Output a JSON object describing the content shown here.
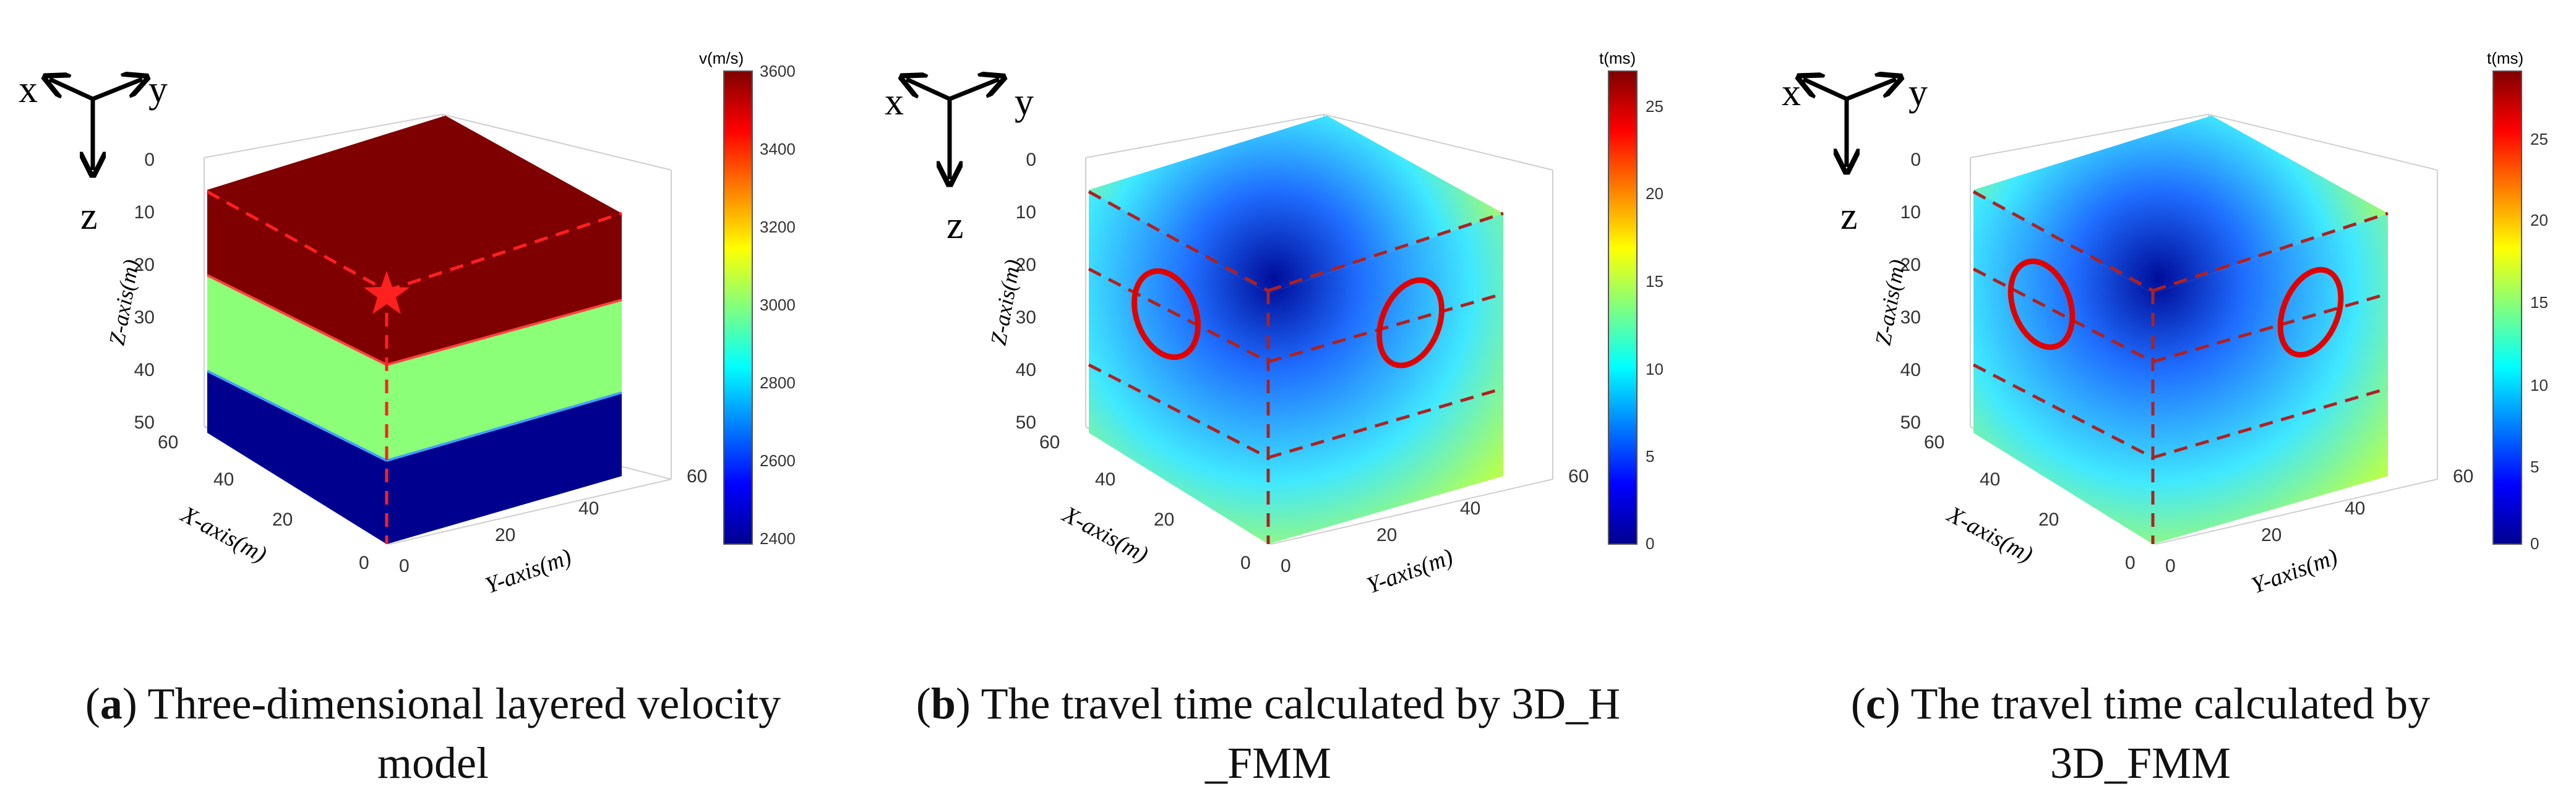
{
  "chart_data": [
    {
      "type": "3d-volume",
      "panel_letter": "a",
      "caption": "Three-dimensional layered velocity model",
      "axes_triad": {
        "x": "x",
        "y": "y",
        "z": "z"
      },
      "xlabel": "X-axis(m)",
      "ylabel": "Y-axis(m)",
      "zlabel": "Z-axis(m)",
      "x_ticks": [
        0,
        20,
        40,
        60
      ],
      "y_ticks": [
        0,
        20,
        40,
        60
      ],
      "z_ticks": [
        0,
        10,
        20,
        30,
        40,
        50
      ],
      "xlim": [
        0,
        60
      ],
      "ylim": [
        0,
        60
      ],
      "zlim": [
        0,
        50
      ],
      "colorbar": {
        "title": "v(m/s)",
        "min": 2400,
        "max": 3600,
        "ticks": [
          2400,
          2600,
          2800,
          3000,
          3200,
          3400,
          3600
        ]
      },
      "layers": [
        {
          "z_top": 0,
          "z_bottom": 20,
          "value": 3600,
          "color": "#7f0000"
        },
        {
          "z_top": 20,
          "z_bottom": 36,
          "value": 3050,
          "color": "#8cff78"
        },
        {
          "z_top": 36,
          "z_bottom": 50,
          "value": 2400,
          "color": "#00008f"
        }
      ],
      "source_marker": "star",
      "source_color": "#ff2020"
    },
    {
      "type": "3d-volume",
      "panel_letter": "b",
      "caption": "The travel time calculated by 3D_H _FMM",
      "caption_lines": [
        "The travel time calculated by 3D_H",
        "_FMM"
      ],
      "axes_triad": {
        "x": "x",
        "y": "y",
        "z": "z"
      },
      "xlabel": "X-axis(m)",
      "ylabel": "Y-axis(m)",
      "zlabel": "Z-axis(m)",
      "x_ticks": [
        0,
        20,
        40,
        60
      ],
      "y_ticks": [
        0,
        20,
        40,
        60
      ],
      "z_ticks": [
        0,
        10,
        20,
        30,
        40,
        50
      ],
      "xlim": [
        0,
        60
      ],
      "ylim": [
        0,
        60
      ],
      "zlim": [
        0,
        50
      ],
      "colorbar": {
        "title": "t(ms)",
        "min": 0,
        "max": 27,
        "ticks": [
          0,
          5,
          10,
          15,
          20,
          25
        ]
      },
      "highlight_circles": 2,
      "circle_color": "#e00000"
    },
    {
      "type": "3d-volume",
      "panel_letter": "c",
      "caption": "The travel time calculated by 3D_FMM",
      "caption_lines": [
        "The travel time calculated by",
        "3D_FMM"
      ],
      "axes_triad": {
        "x": "x",
        "y": "y",
        "z": "z"
      },
      "xlabel": "X-axis(m)",
      "ylabel": "Y-axis(m)",
      "zlabel": "Z-axis(m)",
      "x_ticks": [
        0,
        20,
        40,
        60
      ],
      "y_ticks": [
        0,
        20,
        40,
        60
      ],
      "z_ticks": [
        0,
        10,
        20,
        30,
        40,
        50
      ],
      "xlim": [
        0,
        60
      ],
      "ylim": [
        0,
        60
      ],
      "zlim": [
        0,
        50
      ],
      "colorbar": {
        "title": "t(ms)",
        "min": 0,
        "max": 28,
        "ticks": [
          0,
          5,
          10,
          15,
          20,
          25
        ]
      },
      "highlight_circles": 2,
      "circle_color": "#e00000"
    }
  ]
}
